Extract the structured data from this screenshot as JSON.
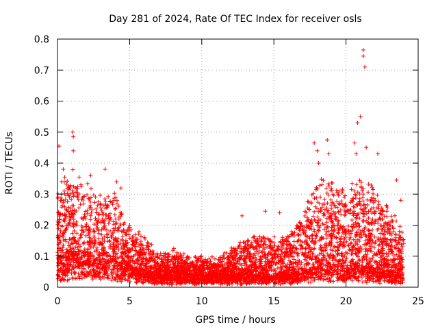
{
  "chart_data": {
    "type": "scatter",
    "title": "Day 281 of 2024, Rate Of TEC Index for receiver osls",
    "xlabel": "GPS time / hours",
    "ylabel": "ROTI / TECUs",
    "xlim": [
      0,
      25
    ],
    "ylim": [
      0,
      0.8
    ],
    "xticks": [
      "0",
      "5",
      "10",
      "15",
      "20",
      "25"
    ],
    "xtick_values": [
      0,
      5,
      10,
      15,
      20,
      25
    ],
    "yticks": [
      "0",
      "0.1",
      "0.2",
      "0.3",
      "0.4",
      "0.5",
      "0.6",
      "0.7",
      "0.8"
    ],
    "ytick_values": [
      0,
      0.1,
      0.2,
      0.3,
      0.4,
      0.5,
      0.6,
      0.7,
      0.8
    ],
    "grid": true,
    "marker": "+",
    "color": "#ff0000",
    "time_range_hours": [
      0,
      24
    ],
    "envelope": [
      {
        "x": 0.0,
        "base": 0.05,
        "spread": 0.28
      },
      {
        "x": 1.0,
        "base": 0.08,
        "spread": 0.28
      },
      {
        "x": 2.0,
        "base": 0.07,
        "spread": 0.26
      },
      {
        "x": 3.0,
        "base": 0.07,
        "spread": 0.24
      },
      {
        "x": 4.0,
        "base": 0.06,
        "spread": 0.24
      },
      {
        "x": 5.0,
        "base": 0.05,
        "spread": 0.14
      },
      {
        "x": 6.0,
        "base": 0.04,
        "spread": 0.12
      },
      {
        "x": 7.0,
        "base": 0.03,
        "spread": 0.07
      },
      {
        "x": 8.0,
        "base": 0.03,
        "spread": 0.09
      },
      {
        "x": 9.0,
        "base": 0.03,
        "spread": 0.07
      },
      {
        "x": 10.0,
        "base": 0.03,
        "spread": 0.07
      },
      {
        "x": 11.0,
        "base": 0.03,
        "spread": 0.06
      },
      {
        "x": 12.0,
        "base": 0.03,
        "spread": 0.09
      },
      {
        "x": 13.0,
        "base": 0.03,
        "spread": 0.12
      },
      {
        "x": 14.0,
        "base": 0.03,
        "spread": 0.14
      },
      {
        "x": 15.0,
        "base": 0.03,
        "spread": 0.14
      },
      {
        "x": 16.0,
        "base": 0.03,
        "spread": 0.15
      },
      {
        "x": 17.0,
        "base": 0.04,
        "spread": 0.2
      },
      {
        "x": 18.0,
        "base": 0.05,
        "spread": 0.3
      },
      {
        "x": 19.0,
        "base": 0.05,
        "spread": 0.3
      },
      {
        "x": 20.0,
        "base": 0.05,
        "spread": 0.25
      },
      {
        "x": 21.0,
        "base": 0.05,
        "spread": 0.3
      },
      {
        "x": 22.0,
        "base": 0.04,
        "spread": 0.28
      },
      {
        "x": 23.0,
        "base": 0.04,
        "spread": 0.22
      },
      {
        "x": 24.0,
        "base": 0.03,
        "spread": 0.15
      }
    ],
    "outliers": [
      {
        "x": 0.1,
        "y": 0.455
      },
      {
        "x": 0.4,
        "y": 0.38
      },
      {
        "x": 0.5,
        "y": 0.355
      },
      {
        "x": 1.05,
        "y": 0.5
      },
      {
        "x": 1.1,
        "y": 0.485
      },
      {
        "x": 1.1,
        "y": 0.44
      },
      {
        "x": 1.5,
        "y": 0.355
      },
      {
        "x": 2.3,
        "y": 0.36
      },
      {
        "x": 3.3,
        "y": 0.38
      },
      {
        "x": 4.1,
        "y": 0.34
      },
      {
        "x": 4.4,
        "y": 0.32
      },
      {
        "x": 5.0,
        "y": 0.2
      },
      {
        "x": 12.8,
        "y": 0.23
      },
      {
        "x": 14.4,
        "y": 0.245
      },
      {
        "x": 15.4,
        "y": 0.24
      },
      {
        "x": 17.8,
        "y": 0.465
      },
      {
        "x": 18.0,
        "y": 0.44
      },
      {
        "x": 18.1,
        "y": 0.4
      },
      {
        "x": 18.7,
        "y": 0.475
      },
      {
        "x": 18.8,
        "y": 0.43
      },
      {
        "x": 20.6,
        "y": 0.465
      },
      {
        "x": 20.7,
        "y": 0.43
      },
      {
        "x": 20.8,
        "y": 0.53
      },
      {
        "x": 21.0,
        "y": 0.55
      },
      {
        "x": 21.2,
        "y": 0.765
      },
      {
        "x": 21.2,
        "y": 0.745
      },
      {
        "x": 21.3,
        "y": 0.71
      },
      {
        "x": 21.4,
        "y": 0.45
      },
      {
        "x": 22.2,
        "y": 0.43
      },
      {
        "x": 23.5,
        "y": 0.345
      },
      {
        "x": 23.8,
        "y": 0.28
      }
    ]
  }
}
